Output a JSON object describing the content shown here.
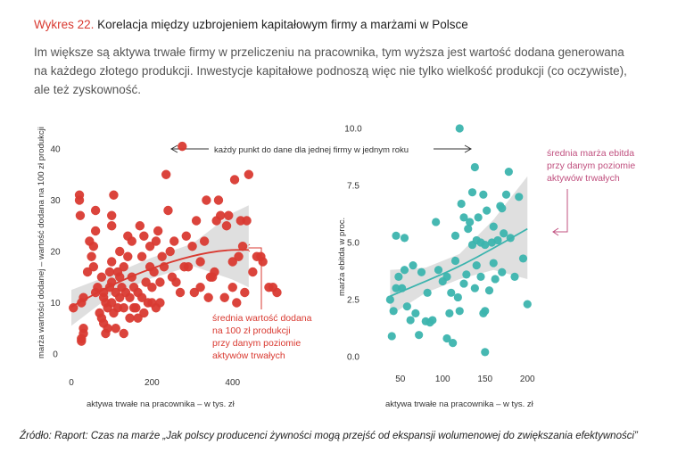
{
  "header": {
    "figure_label": "Wykres 22.",
    "figure_title": "Korelacja między uzbrojeniem kapitałowym firmy a marżami w Polsce"
  },
  "description": {
    "lines": [
      "Im większe są aktywa trwałe firmy w przeliczeniu na pracownika, tym wyższa jest wartość dodana generowana",
      "na każdego złotego produkcji. Inwestycje kapitałowe podnoszą więc nie tylko wielkość produkcji (co oczywiste),",
      "ale też zyskowność."
    ]
  },
  "annotation_top": "każdy punkt do dane dla jednej firmy w jednym roku",
  "source": "Źródło: Raport: Czas na marże „Jak polscy producenci żywności mogą przejść od ekspansji wolumenowej do zwiększania efektywności”",
  "colors": {
    "red": "#d93a31",
    "teal": "#3cb4ae",
    "band": "#d9d9d9",
    "accent_text": "#d93a31",
    "pink_text": "#c0507f"
  },
  "chart_data": [
    {
      "type": "scatter",
      "xlabel": "aktywa trwałe na pracownika – w tys. zł",
      "ylabel": "marża wartości dodanej – wartość dodana na 100 zł produkcji",
      "xticks": [
        "0",
        "200",
        "400"
      ],
      "yticks": [
        "0",
        "10",
        "20",
        "30",
        "40"
      ],
      "xlim": [
        0,
        520
      ],
      "ylim": [
        0,
        40
      ],
      "trend_label": [
        "średnia wartość dodana",
        "na 100 zł produkcji",
        "przy danym poziomie",
        "aktywów trwałych"
      ],
      "trend": [
        [
          0,
          9.2
        ],
        [
          100,
          13.5
        ],
        [
          200,
          16.8
        ],
        [
          300,
          19.2
        ],
        [
          380,
          20.3
        ],
        [
          440,
          20.3
        ]
      ],
      "band": [
        [
          0,
          5.5,
          12.5
        ],
        [
          100,
          11.5,
          15.5
        ],
        [
          200,
          14.8,
          18.8
        ],
        [
          300,
          17.2,
          21.5
        ],
        [
          400,
          14.5,
          27.5
        ],
        [
          440,
          13.0,
          29.0
        ]
      ],
      "points": [
        [
          5,
          9
        ],
        [
          30,
          11
        ],
        [
          30,
          5
        ],
        [
          25,
          3
        ],
        [
          25,
          2.5
        ],
        [
          30,
          4
        ],
        [
          25,
          10
        ],
        [
          20,
          30
        ],
        [
          22,
          27
        ],
        [
          20,
          31
        ],
        [
          40,
          16
        ],
        [
          45,
          22
        ],
        [
          50,
          19
        ],
        [
          55,
          21
        ],
        [
          55,
          17
        ],
        [
          60,
          12
        ],
        [
          60,
          24
        ],
        [
          60,
          28
        ],
        [
          65,
          13
        ],
        [
          70,
          8
        ],
        [
          75,
          15
        ],
        [
          75,
          7
        ],
        [
          80,
          12
        ],
        [
          80,
          11
        ],
        [
          80,
          6
        ],
        [
          85,
          4
        ],
        [
          85,
          10
        ],
        [
          90,
          9
        ],
        [
          90,
          5
        ],
        [
          95,
          13
        ],
        [
          95,
          16
        ],
        [
          100,
          10
        ],
        [
          100,
          14
        ],
        [
          100,
          18
        ],
        [
          100,
          25
        ],
        [
          100,
          27
        ],
        [
          105,
          31
        ],
        [
          105,
          8
        ],
        [
          110,
          5
        ],
        [
          110,
          12
        ],
        [
          115,
          9
        ],
        [
          115,
          16
        ],
        [
          120,
          11
        ],
        [
          120,
          20
        ],
        [
          120,
          15
        ],
        [
          125,
          13
        ],
        [
          130,
          17
        ],
        [
          130,
          9
        ],
        [
          130,
          4
        ],
        [
          135,
          12
        ],
        [
          140,
          19
        ],
        [
          140,
          23
        ],
        [
          145,
          7
        ],
        [
          145,
          11
        ],
        [
          150,
          15
        ],
        [
          150,
          22
        ],
        [
          155,
          13
        ],
        [
          155,
          9
        ],
        [
          160,
          9
        ],
        [
          165,
          7
        ],
        [
          165,
          12
        ],
        [
          170,
          25
        ],
        [
          175,
          11
        ],
        [
          175,
          19
        ],
        [
          180,
          23
        ],
        [
          180,
          8
        ],
        [
          185,
          14
        ],
        [
          190,
          10
        ],
        [
          195,
          17
        ],
        [
          195,
          21
        ],
        [
          200,
          13
        ],
        [
          200,
          10
        ],
        [
          205,
          16
        ],
        [
          210,
          9
        ],
        [
          210,
          22
        ],
        [
          215,
          24
        ],
        [
          220,
          10
        ],
        [
          220,
          14
        ],
        [
          225,
          19
        ],
        [
          230,
          17
        ],
        [
          235,
          35
        ],
        [
          240,
          28
        ],
        [
          245,
          20
        ],
        [
          250,
          15
        ],
        [
          255,
          22
        ],
        [
          260,
          14
        ],
        [
          270,
          12
        ],
        [
          275,
          40.5
        ],
        [
          280,
          17
        ],
        [
          285,
          23
        ],
        [
          290,
          17
        ],
        [
          300,
          21
        ],
        [
          305,
          12
        ],
        [
          310,
          26
        ],
        [
          320,
          13
        ],
        [
          320,
          18
        ],
        [
          330,
          22
        ],
        [
          335,
          30
        ],
        [
          340,
          11
        ],
        [
          345,
          15
        ],
        [
          350,
          15
        ],
        [
          355,
          16
        ],
        [
          360,
          26
        ],
        [
          365,
          30
        ],
        [
          370,
          27
        ],
        [
          380,
          11
        ],
        [
          385,
          25
        ],
        [
          390,
          27
        ],
        [
          400,
          18
        ],
        [
          400,
          13
        ],
        [
          405,
          34
        ],
        [
          410,
          10
        ],
        [
          415,
          19
        ],
        [
          420,
          26
        ],
        [
          425,
          21
        ],
        [
          430,
          12
        ],
        [
          435,
          26
        ],
        [
          440,
          35
        ],
        [
          450,
          16
        ],
        [
          460,
          19
        ],
        [
          470,
          19
        ],
        [
          475,
          18
        ],
        [
          490,
          13
        ],
        [
          500,
          13
        ],
        [
          510,
          12
        ]
      ]
    },
    {
      "type": "scatter",
      "xlabel": "aktywa trwałe na pracownika – w tys. zł",
      "ylabel": "marża ebitda w proc.",
      "xticks": [
        "50",
        "100",
        "150",
        "200"
      ],
      "yticks": [
        "0.0",
        "2.5",
        "5.0",
        "7.5",
        "10.0"
      ],
      "xlim": [
        25,
        225
      ],
      "ylim": [
        0,
        10
      ],
      "trend_label": [
        "średnia marża ebitda",
        "przy danym poziomie",
        "aktywów trwałych"
      ],
      "trend": [
        [
          38,
          2.65
        ],
        [
          80,
          3.3
        ],
        [
          120,
          3.95
        ],
        [
          160,
          4.75
        ],
        [
          200,
          5.6
        ]
      ],
      "band": [
        [
          38,
          1.8,
          3.8
        ],
        [
          80,
          2.8,
          3.9
        ],
        [
          120,
          3.4,
          4.5
        ],
        [
          160,
          3.8,
          6.0
        ],
        [
          200,
          3.4,
          7.9
        ]
      ],
      "points": [
        [
          38,
          2.5
        ],
        [
          40,
          0.9
        ],
        [
          42,
          2.0
        ],
        [
          45,
          3.0
        ],
        [
          45,
          5.3
        ],
        [
          48,
          3.5
        ],
        [
          52,
          3.0
        ],
        [
          55,
          3.8
        ],
        [
          55,
          5.2
        ],
        [
          58,
          2.2
        ],
        [
          62,
          1.6
        ],
        [
          65,
          4.0
        ],
        [
          68,
          1.9
        ],
        [
          72,
          0.95
        ],
        [
          75,
          3.7
        ],
        [
          80,
          1.55
        ],
        [
          82,
          2.8
        ],
        [
          85,
          1.5
        ],
        [
          88,
          1.6
        ],
        [
          92,
          5.9
        ],
        [
          95,
          3.8
        ],
        [
          100,
          3.3
        ],
        [
          105,
          0.8
        ],
        [
          105,
          3.5
        ],
        [
          108,
          1.9
        ],
        [
          110,
          2.8
        ],
        [
          112,
          0.6
        ],
        [
          115,
          4.2
        ],
        [
          115,
          5.3
        ],
        [
          118,
          2.6
        ],
        [
          120,
          10.0
        ],
        [
          120,
          2.0
        ],
        [
          122,
          6.7
        ],
        [
          125,
          3.2
        ],
        [
          125,
          6.1
        ],
        [
          128,
          3.6
        ],
        [
          130,
          5.6
        ],
        [
          132,
          5.9
        ],
        [
          135,
          4.9
        ],
        [
          135,
          7.2
        ],
        [
          138,
          3.0
        ],
        [
          138,
          8.3
        ],
        [
          140,
          4.0
        ],
        [
          140,
          5.1
        ],
        [
          142,
          6.1
        ],
        [
          145,
          3.5
        ],
        [
          145,
          5.0
        ],
        [
          148,
          1.9
        ],
        [
          148,
          7.1
        ],
        [
          150,
          2.0
        ],
        [
          150,
          4.9
        ],
        [
          150,
          0.2
        ],
        [
          152,
          6.4
        ],
        [
          155,
          2.9
        ],
        [
          158,
          5.0
        ],
        [
          160,
          4.1
        ],
        [
          160,
          5.7
        ],
        [
          162,
          3.4
        ],
        [
          165,
          5.1
        ],
        [
          168,
          6.6
        ],
        [
          170,
          3.7
        ],
        [
          170,
          6.5
        ],
        [
          172,
          5.4
        ],
        [
          175,
          7.1
        ],
        [
          178,
          8.1
        ],
        [
          180,
          5.2
        ],
        [
          185,
          3.5
        ],
        [
          190,
          7.0
        ],
        [
          195,
          4.3
        ],
        [
          200,
          2.3
        ]
      ]
    }
  ]
}
